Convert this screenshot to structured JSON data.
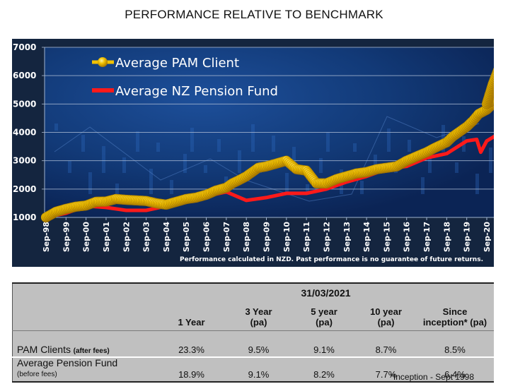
{
  "page": {
    "title": "PERFORMANCE RELATIVE TO BENCHMARK"
  },
  "chart_data": {
    "type": "line",
    "title": "PERFORMANCE RELATIVE TO BENCHMARK",
    "xlabel": "",
    "ylabel": "",
    "ylim": [
      1000,
      7000
    ],
    "yticks": [
      "1000",
      "2000",
      "3000",
      "4000",
      "5000",
      "6000",
      "7000"
    ],
    "ytick_values": [
      1000,
      2000,
      3000,
      4000,
      5000,
      6000,
      7000
    ],
    "xticks": [
      "Sep-98",
      "Sep-99",
      "Sep-00",
      "Sep-01",
      "Sep-02",
      "Sep-03",
      "Sep-04",
      "Sep-05",
      "Sep-06",
      "Sep-07",
      "Sep-08",
      "Sep-09",
      "Sep-10",
      "Sep-11",
      "Sep-12",
      "Sep-13",
      "Sep-14",
      "Sep-15",
      "Sep-16",
      "Sep-17",
      "Sep-18",
      "Sep-19",
      "Sep-20"
    ],
    "xlim_years": [
      0,
      22.6
    ],
    "grid": true,
    "legend_position": "top-left",
    "note": "Performance calculated in NZD.  Past performance is no guarantee of future returns.",
    "series": [
      {
        "name": "Average PAM Client",
        "color": "#f2c200",
        "style": "beads",
        "x_years": [
          0,
          0.5,
          1,
          1.5,
          2,
          2.5,
          3,
          3.5,
          4,
          4.5,
          5,
          5.5,
          6,
          6.5,
          7,
          7.5,
          8,
          8.5,
          9,
          9.3,
          9.6,
          10,
          10.3,
          10.6,
          11,
          11.5,
          12,
          12.5,
          13,
          13.5,
          14,
          14.5,
          15,
          15.5,
          16,
          16.5,
          17,
          17.5,
          18,
          18.5,
          19,
          19.4,
          20,
          20.3,
          20.5,
          20.8,
          21,
          21.3,
          21.6,
          22,
          22.3,
          22.5
        ],
        "values": [
          1000,
          1200,
          1300,
          1380,
          1420,
          1550,
          1560,
          1650,
          1620,
          1600,
          1580,
          1500,
          1450,
          1550,
          1650,
          1700,
          1800,
          1950,
          2050,
          2200,
          2300,
          2450,
          2600,
          2750,
          2800,
          2900,
          3000,
          2700,
          2650,
          2200,
          2200,
          2350,
          2450,
          2550,
          2600,
          2700,
          2750,
          2800,
          3000,
          3150,
          3300,
          3450,
          3650,
          3850,
          3950,
          4100,
          4200,
          4400,
          4650,
          4800,
          5000,
          5200
        ],
        "x_years_tail": [
          21.6,
          22,
          22.3,
          22.6
        ],
        "values_tail": [
          5800,
          5000,
          5700,
          6250
        ]
      },
      {
        "name": "Average NZ Pension Fund",
        "color": "#ff1a1a",
        "style": "line",
        "x_years": [
          0,
          1,
          2,
          3,
          4,
          5,
          6,
          7,
          8,
          9,
          10,
          11,
          12,
          13,
          14,
          15,
          16,
          17,
          18,
          19,
          20,
          21,
          21.5,
          21.7,
          22,
          22.6
        ],
        "values": [
          1000,
          1150,
          1400,
          1350,
          1250,
          1250,
          1400,
          1550,
          1750,
          1900,
          1600,
          1700,
          1850,
          1850,
          2000,
          2250,
          2450,
          2700,
          2800,
          3100,
          3250,
          3700,
          3750,
          3300,
          3700,
          3950
        ]
      }
    ]
  },
  "table": {
    "date": "31/03/2021",
    "columns": [
      {
        "line1": "1 Year",
        "line2": ""
      },
      {
        "line1": "3 Year",
        "line2": "(pa)"
      },
      {
        "line1": "5 year",
        "line2": "(pa)"
      },
      {
        "line1": "10 year",
        "line2": "(pa)"
      },
      {
        "line1": "Since",
        "line2": "inception* (pa)"
      }
    ],
    "rows": [
      {
        "label": "PAM Clients",
        "sublabel": "(after fees)",
        "values": [
          "23.3%",
          "9.5%",
          "9.1%",
          "8.7%",
          "8.5%"
        ]
      },
      {
        "label": "Average Pension Fund",
        "sublabel": "(before fees)",
        "values": [
          "18.9%",
          "9.1%",
          "8.2%",
          "7.7%",
          "6.4%"
        ]
      }
    ],
    "footnote": "*Inception - Sept 1998"
  }
}
